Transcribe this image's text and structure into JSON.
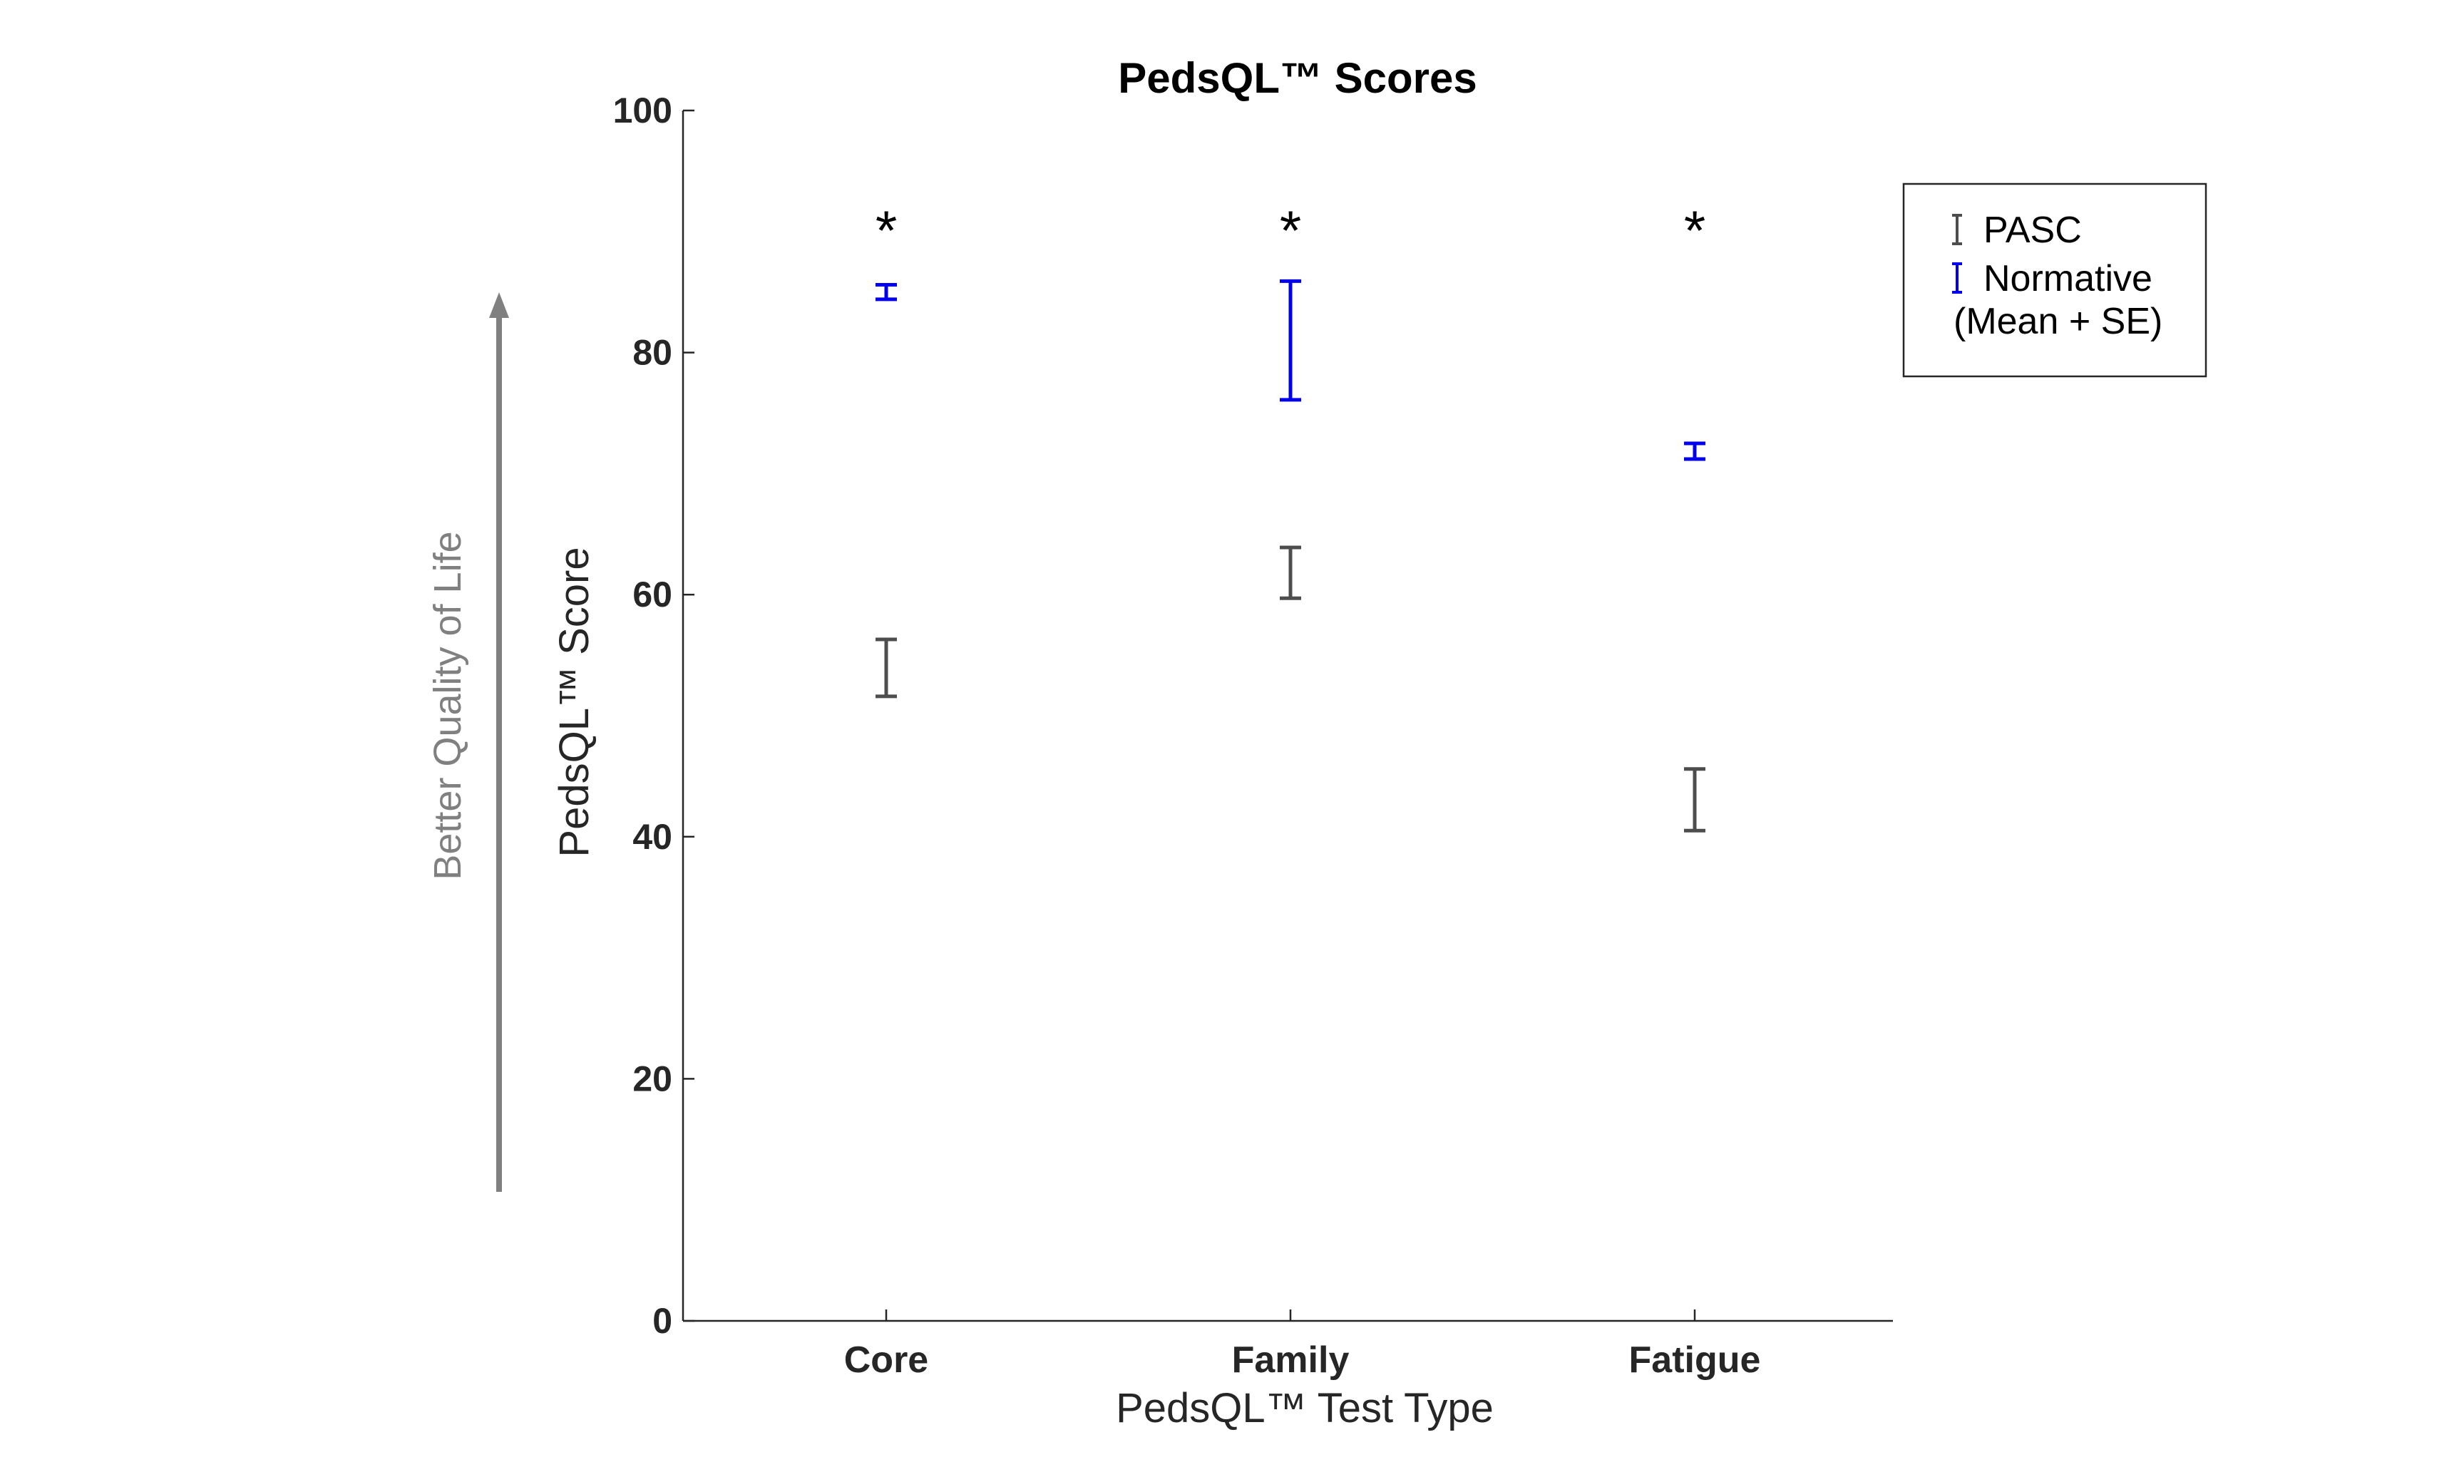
{
  "chart_data": {
    "type": "errorbar",
    "title": "PedsQL™ Scores",
    "xlabel": "PedsQL™ Test Type",
    "ylabel": "PedsQL™ Score",
    "side_annotation": "Better Quality of Life",
    "categories": [
      "Core",
      "Family",
      "Fatigue"
    ],
    "ylim": [
      0,
      100
    ],
    "yticks": [
      "0",
      "20",
      "40",
      "60",
      "80",
      "100"
    ],
    "significance_marker": "*",
    "series": [
      {
        "name": "PASC",
        "color": "#4d4d4d",
        "low": [
          51.6,
          59.7,
          40.5
        ],
        "high": [
          56.3,
          63.9,
          45.6
        ]
      },
      {
        "name": "Normative",
        "color": "#0000ee",
        "low": [
          84.4,
          76.1,
          71.2
        ],
        "high": [
          85.6,
          85.9,
          72.5
        ]
      }
    ],
    "legend": {
      "position": "outside-right",
      "entries": [
        "PASC",
        "Normative"
      ],
      "note": "(Mean + SE)"
    },
    "grid": false
  }
}
